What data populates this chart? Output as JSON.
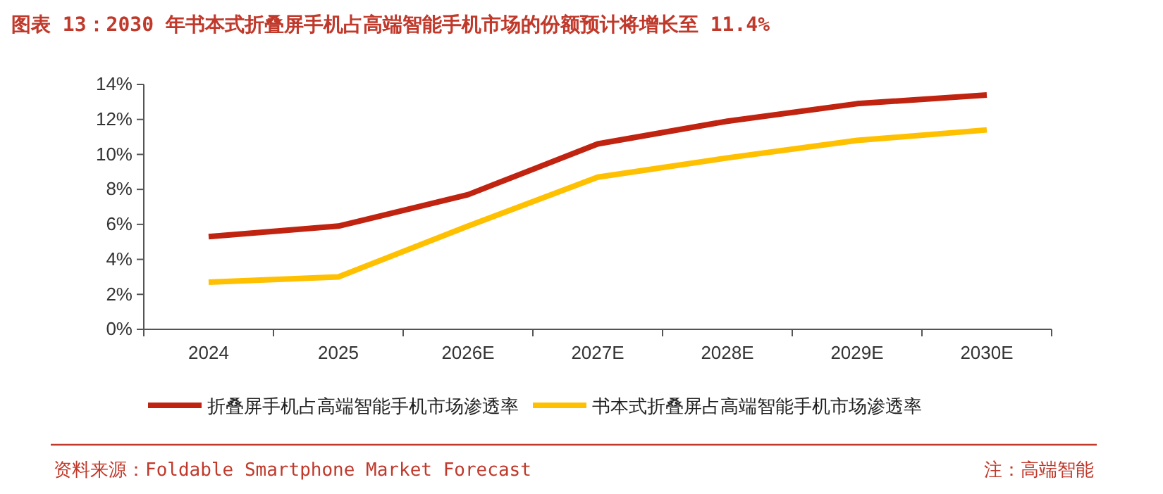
{
  "chart_data": {
    "type": "line",
    "title": "图表 13：2030 年书本式折叠屏手机占高端智能手机市场的份额预计将增长至 11.4%",
    "categories": [
      "2024",
      "2025",
      "2026E",
      "2027E",
      "2028E",
      "2029E",
      "2030E"
    ],
    "series": [
      {
        "name": "折叠屏手机占高端智能手机市场渗透率",
        "color": "#c0230f",
        "values": [
          5.3,
          5.9,
          7.7,
          10.6,
          11.9,
          12.9,
          13.4
        ]
      },
      {
        "name": "书本式折叠屏占高端智能手机市场渗透率",
        "color": "#ffc000",
        "values": [
          2.7,
          3.0,
          5.9,
          8.7,
          9.8,
          10.8,
          11.4
        ]
      }
    ],
    "ylim": [
      0,
      14
    ],
    "yticks": [
      {
        "value": 0,
        "label": "0%"
      },
      {
        "value": 2,
        "label": "2%"
      },
      {
        "value": 4,
        "label": "4%"
      },
      {
        "value": 6,
        "label": "6%"
      },
      {
        "value": 8,
        "label": "8%"
      },
      {
        "value": 10,
        "label": "10%"
      },
      {
        "value": 12,
        "label": "12%"
      },
      {
        "value": 14,
        "label": "14%"
      }
    ],
    "grid": false,
    "legend": "bottom",
    "marker": "none",
    "line_style": "solid",
    "annotations": [
      "资料来源：Foldable Smartphone Market Forecast",
      "注：高端智能"
    ]
  }
}
